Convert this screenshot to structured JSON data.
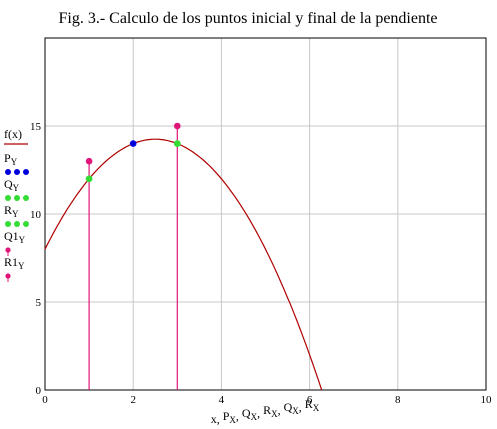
{
  "chart_data": {
    "type": "line",
    "title": "Fig. 3.- Calculo de los puntos inicial y final de la pendiente",
    "xlabel": "x, P_X, Q_X, R_X, Q_X, R_X",
    "xlabel_parts": [
      "x",
      "P",
      "X",
      "Q",
      "X",
      "R",
      "X",
      "Q",
      "X",
      "R",
      "X"
    ],
    "xlim": [
      0,
      10
    ],
    "ylim": [
      0,
      20
    ],
    "x_ticks": [
      0,
      2,
      4,
      6,
      8,
      10
    ],
    "y_ticks": [
      0,
      5,
      10,
      15
    ],
    "grid": true,
    "legend_position": "left",
    "curve": {
      "name": "f(x)",
      "color": "#b00000",
      "x": [
        0,
        0.5,
        1,
        1.5,
        2,
        2.5,
        3,
        3.5,
        4,
        4.5,
        5,
        5.5,
        6,
        6.25
      ],
      "y": [
        8,
        10.375,
        12,
        13.125,
        13.75,
        14,
        13.75,
        13.125,
        12,
        10.375,
        8,
        4.875,
        1,
        -0.2
      ]
    },
    "points": [
      {
        "name": "P_Y",
        "label": "P",
        "sub": "Y",
        "color": "#0000dd",
        "x": [
          2
        ],
        "y": [
          14
        ]
      },
      {
        "name": "Q_Y",
        "label": "Q",
        "sub": "Y",
        "color": "#33dd33",
        "x": [
          1,
          3
        ],
        "y": [
          12,
          14
        ]
      },
      {
        "name": "R_Y",
        "label": "R",
        "sub": "Y",
        "color": "#33dd33",
        "x": [
          1,
          3
        ],
        "y": [
          12,
          14
        ]
      },
      {
        "name": "Q1_Y",
        "label": "Q1",
        "sub": "Y",
        "color": "#e0157a",
        "x": [
          1
        ],
        "y": [
          13
        ],
        "stem": true
      },
      {
        "name": "R1_Y",
        "label": "R1",
        "sub": "Y",
        "color": "#e0157a",
        "x": [
          3
        ],
        "y": [
          15
        ],
        "stem": true
      }
    ]
  }
}
